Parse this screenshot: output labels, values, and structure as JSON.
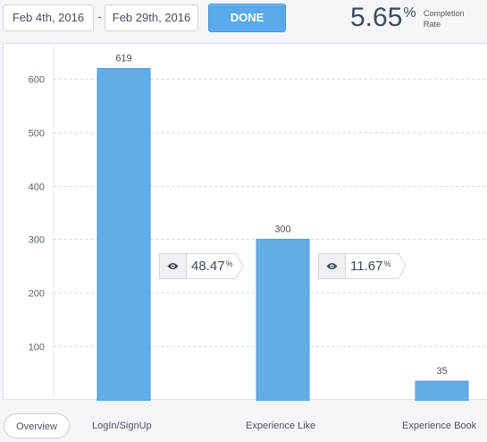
{
  "date_range": {
    "start": "Feb 4th, 2016",
    "separator": "-",
    "end": "Feb 29th, 2016",
    "done_label": "DONE"
  },
  "completion": {
    "value": "5.65",
    "percent_sign": "%",
    "label_line1": "Completion",
    "label_line2": "Rate"
  },
  "chart_data": {
    "type": "bar",
    "categories": [
      "LogIn/SignUp",
      "Experience Like",
      "Experience Book"
    ],
    "values": [
      619,
      300,
      35
    ],
    "data_labels": [
      "619",
      "300",
      "35"
    ],
    "yticks": [
      100,
      200,
      300,
      400,
      500,
      600
    ],
    "ylim": [
      0,
      650
    ],
    "grid": true,
    "bar_color": "#63ade7",
    "conversions": [
      {
        "value": "48.47",
        "unit": "%",
        "icon": "eye-icon"
      },
      {
        "value": "11.67",
        "unit": "%",
        "icon": "eye-icon"
      }
    ]
  },
  "tabs": [
    {
      "label": "Overview",
      "active": true
    },
    {
      "label": "LogIn/SignUp",
      "active": false
    },
    {
      "label": "Experience Like",
      "active": false
    },
    {
      "label": "Experience Book",
      "active": false
    }
  ]
}
